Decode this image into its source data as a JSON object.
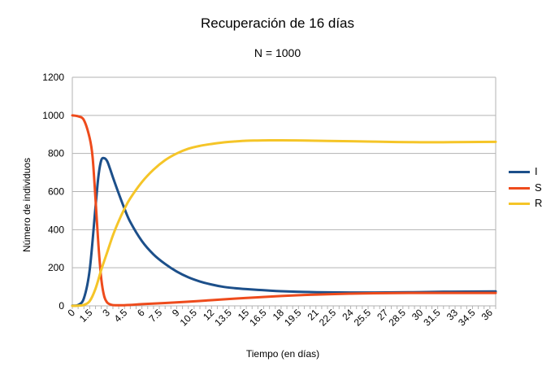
{
  "chart_data": {
    "type": "line",
    "title": "Recuperación de 16 días",
    "subtitle": "N = 1000",
    "xlabel": "Tiempo (en días)",
    "ylabel": "Número de individuos",
    "xlim": [
      0,
      36.5
    ],
    "ylim": [
      0,
      1200
    ],
    "yticks": [
      0,
      200,
      400,
      600,
      800,
      1000,
      1200
    ],
    "xtick_labels": [
      "0",
      "1.5",
      "3",
      "4.5",
      "6",
      "7.5",
      "9",
      "10.5",
      "12",
      "13.5",
      "15",
      "16.5",
      "18",
      "19.5",
      "21",
      "22.5",
      "24",
      "25.5",
      "27",
      "28.5",
      "30",
      "31.5",
      "33",
      "34.5",
      "36"
    ],
    "grid": "horizontal",
    "legend_position": "right",
    "series": [
      {
        "name": "I",
        "color": "#1c4f8a",
        "x": [
          0,
          0.5,
          1,
          1.5,
          2,
          2.25,
          2.5,
          2.75,
          3,
          3.25,
          3.5,
          4,
          4.5,
          5,
          6,
          7,
          8,
          9,
          10,
          11,
          12,
          13,
          14,
          15,
          16,
          17,
          18,
          20,
          22,
          24,
          26,
          28,
          30,
          32,
          34,
          36.5
        ],
        "y": [
          1,
          5,
          40,
          190,
          520,
          680,
          765,
          775,
          760,
          720,
          675,
          590,
          510,
          440,
          340,
          270,
          220,
          180,
          150,
          128,
          112,
          100,
          93,
          88,
          84,
          80,
          77,
          73,
          71,
          70,
          70,
          71,
          72,
          74,
          75,
          76
        ]
      },
      {
        "name": "S",
        "color": "#ee4b1c",
        "x": [
          0,
          0.5,
          1,
          1.5,
          1.75,
          2,
          2.25,
          2.5,
          2.75,
          3,
          3.25,
          3.5,
          4,
          5,
          6,
          8,
          10,
          12,
          14,
          16,
          18,
          20,
          22,
          24,
          26,
          28,
          30,
          32,
          34,
          36.5
        ],
        "y": [
          1000,
          995,
          975,
          880,
          780,
          560,
          320,
          140,
          50,
          18,
          8,
          4,
          3,
          5,
          9,
          15,
          22,
          30,
          38,
          45,
          52,
          57,
          61,
          64,
          66,
          67,
          68,
          68,
          68,
          68
        ]
      },
      {
        "name": "R",
        "color": "#f5c528",
        "x": [
          0,
          0.5,
          1,
          1.5,
          2,
          2.5,
          3,
          3.5,
          4,
          4.5,
          5,
          6,
          7,
          8,
          9,
          10,
          11,
          12,
          13,
          14,
          15,
          16,
          17,
          18,
          20,
          22,
          24,
          26,
          28,
          30,
          32,
          34,
          36.5
        ],
        "y": [
          0,
          1,
          5,
          25,
          90,
          190,
          280,
          370,
          445,
          510,
          565,
          650,
          715,
          765,
          800,
          825,
          840,
          850,
          858,
          863,
          867,
          868,
          869,
          869,
          868,
          866,
          864,
          862,
          860,
          859,
          859,
          860,
          861
        ]
      }
    ]
  }
}
